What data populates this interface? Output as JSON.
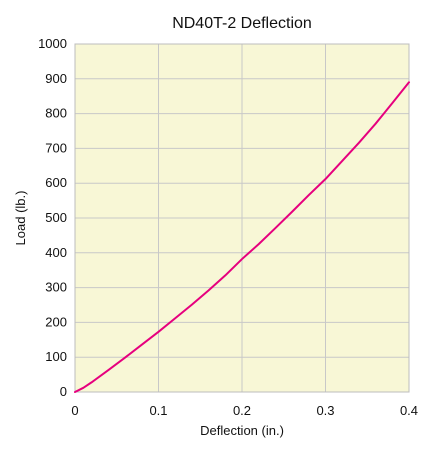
{
  "chart_data": {
    "type": "line",
    "title": "ND40T-2 Deflection",
    "xlabel": "Deflection (in.)",
    "ylabel": "Load (lb.)",
    "xlim": [
      0,
      0.4
    ],
    "ylim": [
      0,
      1000
    ],
    "x_ticks": [
      "0",
      "0.1",
      "0.2",
      "0.3",
      "0.4"
    ],
    "y_ticks": [
      "0",
      "100",
      "200",
      "300",
      "400",
      "500",
      "600",
      "700",
      "800",
      "900",
      "1000"
    ],
    "grid": true,
    "plot_background": "#f8f7d6",
    "grid_color": "#c8c8c8",
    "series": [
      {
        "color": "#e6007e",
        "x": [
          0,
          0.01,
          0.02,
          0.04,
          0.06,
          0.08,
          0.1,
          0.12,
          0.14,
          0.16,
          0.18,
          0.2,
          0.22,
          0.24,
          0.26,
          0.28,
          0.3,
          0.32,
          0.34,
          0.36,
          0.38,
          0.4
        ],
        "y": [
          0,
          12,
          28,
          63,
          99,
          136,
          173,
          212,
          251,
          292,
          335,
          382,
          425,
          471,
          518,
          566,
          612,
          664,
          716,
          771,
          830,
          890
        ]
      }
    ]
  }
}
